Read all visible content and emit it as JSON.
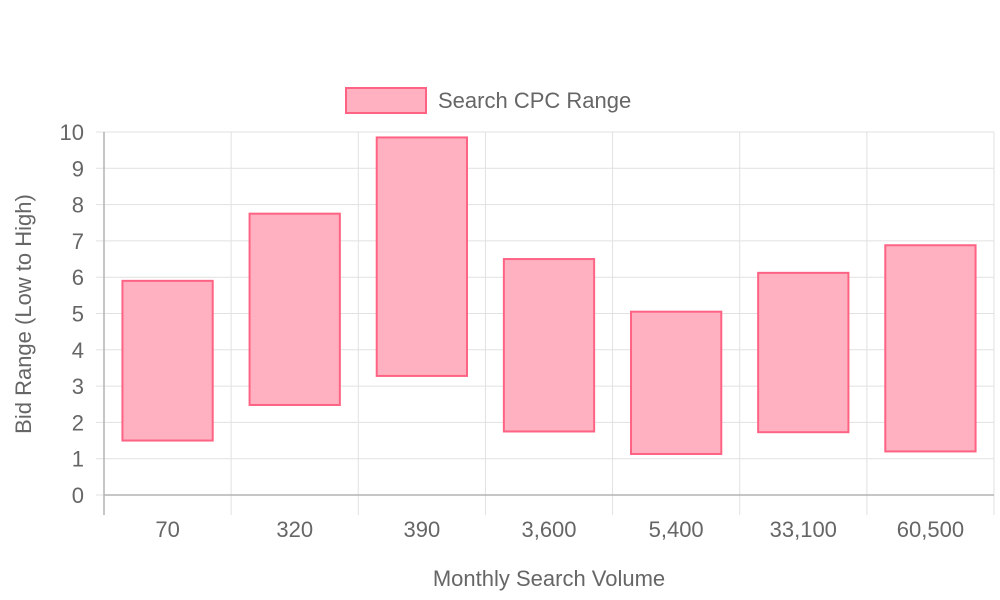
{
  "chart_data": {
    "type": "bar",
    "subtype": "floating-range",
    "categories": [
      "70",
      "320",
      "390",
      "3,600",
      "5,400",
      "33,100",
      "60,500"
    ],
    "series": [
      {
        "name": "Search CPC Range",
        "low": [
          1.5,
          2.48,
          3.28,
          1.75,
          1.13,
          1.73,
          1.2
        ],
        "high": [
          5.9,
          7.75,
          9.85,
          6.5,
          5.05,
          6.12,
          6.88
        ]
      }
    ],
    "xlabel": "Monthly Search Volume",
    "ylabel": "Bid Range (Low to High)",
    "ylim": [
      0,
      10
    ],
    "yticks": [
      "0",
      "1",
      "2",
      "3",
      "4",
      "5",
      "6",
      "7",
      "8",
      "9",
      "10"
    ],
    "grid": true,
    "legend_position": "top-center",
    "colors": {
      "bar_fill": "#ffb1c1",
      "bar_border": "#ff6384",
      "grid": "#e1e1e1",
      "axis": "#b3b3b3",
      "text": "#666666"
    }
  }
}
